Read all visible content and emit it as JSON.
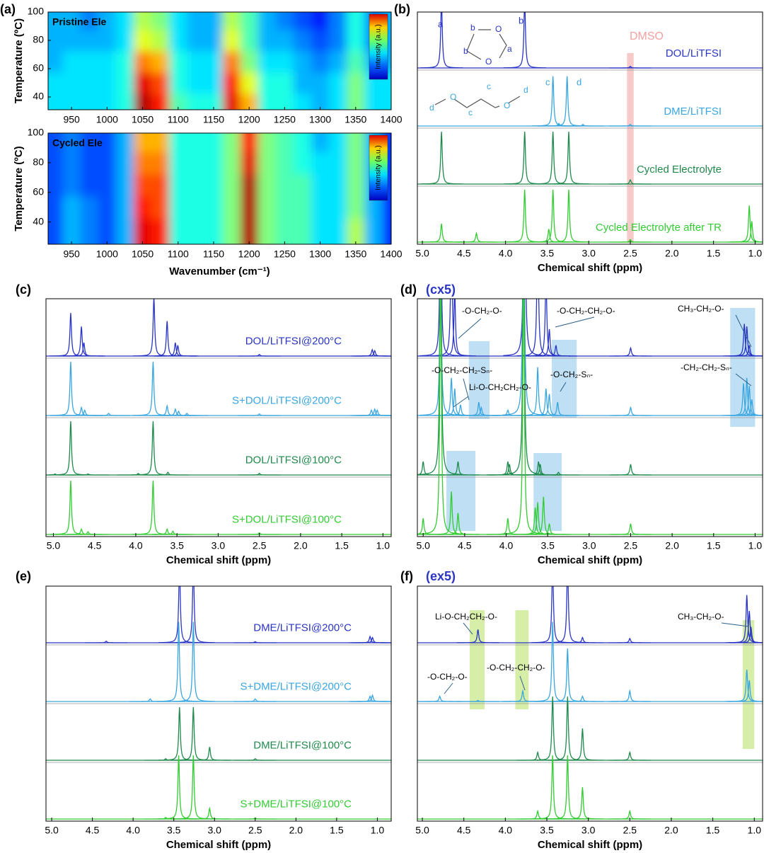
{
  "chart_data": [
    {
      "type": "heatmap",
      "panel_label": "(a)",
      "title": "Pristine Ele",
      "ylabel": "Temperature (ºC)",
      "colorbar_label": "Intensity (a.u.)",
      "xlim": [
        917,
        1400
      ],
      "ylim": [
        31,
        100
      ],
      "xticks": [
        950,
        1000,
        1050,
        1100,
        1150,
        1200,
        1250,
        1300,
        1350,
        1400
      ],
      "yticks": [
        40,
        60,
        80,
        100
      ],
      "x": [
        925,
        950,
        975,
        1000,
        1025,
        1050,
        1075,
        1100,
        1125,
        1150,
        1175,
        1200,
        1225,
        1250,
        1275,
        1300,
        1325,
        1350,
        1375,
        1400
      ],
      "y": [
        35,
        50,
        65,
        80,
        95
      ],
      "values": [
        [
          0.35,
          0.35,
          0.35,
          0.35,
          0.4,
          0.95,
          0.85,
          0.45,
          0.4,
          0.4,
          0.9,
          0.7,
          0.4,
          0.4,
          0.35,
          0.3,
          0.35,
          0.5,
          0.35,
          0.35
        ],
        [
          0.35,
          0.35,
          0.35,
          0.35,
          0.4,
          0.9,
          0.8,
          0.4,
          0.35,
          0.35,
          0.85,
          0.6,
          0.4,
          0.4,
          0.3,
          0.3,
          0.35,
          0.5,
          0.35,
          0.35
        ],
        [
          0.3,
          0.35,
          0.35,
          0.35,
          0.4,
          0.75,
          0.7,
          0.4,
          0.35,
          0.35,
          0.75,
          0.5,
          0.35,
          0.35,
          0.3,
          0.25,
          0.3,
          0.45,
          0.3,
          0.3
        ],
        [
          0.3,
          0.3,
          0.3,
          0.3,
          0.35,
          0.6,
          0.55,
          0.35,
          0.3,
          0.3,
          0.6,
          0.45,
          0.3,
          0.3,
          0.25,
          0.2,
          0.25,
          0.4,
          0.25,
          0.3
        ],
        [
          0.3,
          0.3,
          0.25,
          0.3,
          0.35,
          0.55,
          0.5,
          0.35,
          0.3,
          0.3,
          0.55,
          0.45,
          0.3,
          0.25,
          0.2,
          0.15,
          0.25,
          0.4,
          0.25,
          0.3
        ]
      ]
    },
    {
      "type": "heatmap",
      "title": "Cycled Ele",
      "ylabel": "Temperature (ºC)",
      "xlabel": "Wavenumber (cm⁻¹)",
      "colorbar_label": "Intensity (a.u.)",
      "xlim": [
        917,
        1400
      ],
      "ylim": [
        25,
        100
      ],
      "xticks": [
        950,
        1000,
        1050,
        1100,
        1150,
        1200,
        1250,
        1300,
        1350,
        1400
      ],
      "yticks": [
        40,
        60,
        80,
        100
      ],
      "x": [
        925,
        950,
        975,
        1000,
        1025,
        1050,
        1075,
        1100,
        1125,
        1150,
        1175,
        1200,
        1225,
        1250,
        1275,
        1300,
        1325,
        1350,
        1375,
        1400
      ],
      "y": [
        35,
        50,
        65,
        80,
        95
      ],
      "values": [
        [
          0.2,
          0.3,
          0.25,
          0.2,
          0.3,
          0.9,
          0.85,
          0.4,
          0.4,
          0.4,
          0.5,
          0.95,
          0.5,
          0.45,
          0.45,
          0.35,
          0.35,
          0.55,
          0.3,
          0.15
        ],
        [
          0.2,
          0.3,
          0.25,
          0.2,
          0.3,
          0.85,
          0.8,
          0.4,
          0.4,
          0.4,
          0.5,
          0.95,
          0.5,
          0.45,
          0.45,
          0.35,
          0.35,
          0.5,
          0.3,
          0.15
        ],
        [
          0.2,
          0.25,
          0.2,
          0.2,
          0.3,
          0.8,
          0.8,
          0.4,
          0.4,
          0.4,
          0.5,
          0.95,
          0.5,
          0.45,
          0.45,
          0.35,
          0.35,
          0.5,
          0.3,
          0.15
        ],
        [
          0.2,
          0.25,
          0.2,
          0.2,
          0.3,
          0.75,
          0.75,
          0.4,
          0.4,
          0.4,
          0.5,
          0.9,
          0.5,
          0.45,
          0.4,
          0.35,
          0.35,
          0.5,
          0.3,
          0.15
        ],
        [
          0.2,
          0.25,
          0.2,
          0.2,
          0.3,
          0.7,
          0.7,
          0.4,
          0.4,
          0.4,
          0.5,
          0.85,
          0.5,
          0.45,
          0.4,
          0.3,
          0.35,
          0.5,
          0.3,
          0.15
        ]
      ]
    },
    {
      "type": "spectrum",
      "panel_label": "(b)",
      "xlabel": "Chemical shift (ppm)",
      "xlim": [
        5.06,
        0.91
      ],
      "xticks": [
        {
          "value": 5,
          "label": "5.0"
        },
        4.5,
        {
          "value": 4,
          "label": "4.0"
        },
        3.5,
        {
          "value": 3,
          "label": "3.0"
        },
        2.5,
        {
          "value": 2,
          "label": "2.0"
        },
        1.5,
        {
          "value": 1,
          "label": "1.0"
        }
      ],
      "bands": [
        [
          2.54,
          2.46
        ]
      ],
      "band_color": "#f6b8b8",
      "annotations": [
        "DMSO",
        "a",
        "b",
        "b",
        "b",
        "a",
        "c",
        "d",
        "d",
        "c",
        "c",
        "d",
        "O",
        "O",
        "O",
        "O"
      ],
      "series": [
        {
          "name": "DOL/LiTFSI",
          "color": "#2a35c4",
          "x": [
            4.77,
            3.77,
            2.5
          ],
          "values": [
            1.3,
            1.3,
            0.03
          ]
        },
        {
          "name": "DME/LiTFSI",
          "color": "#3aa6e0",
          "x": [
            3.43,
            3.36,
            3.26,
            3.07,
            2.5
          ],
          "values": [
            0.95,
            0.05,
            0.95,
            0.03,
            0.03
          ]
        },
        {
          "name": "Cycled Electrolyte",
          "color": "#1f8a4c",
          "x": [
            4.77,
            3.77,
            3.43,
            3.24,
            2.5
          ],
          "values": [
            1.0,
            1.0,
            1.0,
            1.0,
            0.08
          ]
        },
        {
          "name": "Cycled Electrolyte after TR",
          "color": "#33cc33",
          "x": [
            4.77,
            4.35,
            3.77,
            3.48,
            3.43,
            3.24,
            2.5,
            1.07,
            1.04
          ],
          "values": [
            0.35,
            0.17,
            1.0,
            0.25,
            1.0,
            1.0,
            0.05,
            0.7,
            0.4
          ]
        }
      ]
    },
    {
      "type": "spectrum",
      "panel_label": "(c)",
      "xlabel": "Chemical shift (ppm)",
      "xlim": [
        5.09,
        0.9
      ],
      "xticks": [
        {
          "value": 5,
          "label": "5.0"
        },
        4.5,
        {
          "value": 4,
          "label": "4.0"
        },
        3.5,
        {
          "value": 3,
          "label": "3.0"
        },
        2.5,
        {
          "value": 2,
          "label": "2.0"
        },
        1.5,
        {
          "value": 1,
          "label": "1.0"
        }
      ],
      "series": [
        {
          "name": "DOL/LiTFSI@200°C",
          "color": "#2a35c4",
          "x": [
            4.79,
            4.66,
            4.63,
            3.78,
            3.62,
            3.52,
            3.49,
            2.5,
            1.13,
            1.1
          ],
          "values": [
            0.8,
            0.55,
            0.25,
            1.1,
            0.65,
            0.25,
            0.2,
            0.03,
            0.12,
            0.1
          ]
        },
        {
          "name": "S+DOL/LiTFSI@200°C",
          "color": "#3aa6e0",
          "x": [
            4.79,
            4.66,
            4.62,
            4.33,
            3.79,
            3.62,
            3.52,
            3.48,
            3.38,
            2.5,
            1.14,
            1.1,
            1.07
          ],
          "values": [
            1.0,
            0.15,
            0.1,
            0.04,
            1.0,
            0.18,
            0.12,
            0.08,
            0.04,
            0.03,
            0.1,
            0.12,
            0.1
          ]
        },
        {
          "name": "DOL/LiTFSI@100°C",
          "color": "#1f8a4c",
          "x": [
            4.98,
            4.79,
            4.58,
            3.97,
            3.79,
            3.61,
            2.5
          ],
          "values": [
            0.02,
            1.0,
            0.02,
            0.03,
            1.0,
            0.05,
            0.03
          ]
        },
        {
          "name": "S+DOL/LiTFSI@100°C",
          "color": "#33cc33",
          "x": [
            4.79,
            4.66,
            4.58,
            3.79,
            3.62,
            3.55,
            2.5
          ],
          "values": [
            1.0,
            0.1,
            0.05,
            1.0,
            0.1,
            0.06,
            0.03
          ]
        }
      ]
    },
    {
      "type": "spectrum",
      "panel_label": "(d)",
      "title": "(cx5)",
      "xlabel": "Chemical shift (ppm)",
      "xlim": [
        5.07,
        0.91
      ],
      "xticks": [
        {
          "value": 5,
          "label": "5.0"
        },
        4.5,
        {
          "value": 4,
          "label": "4.0"
        },
        3.5,
        {
          "value": 3,
          "label": "3.0"
        },
        2.5,
        {
          "value": 2,
          "label": "2.0"
        },
        1.5,
        {
          "value": 1,
          "label": "1.0"
        }
      ],
      "bands": [
        [
          4.45,
          4.2
        ],
        [
          3.45,
          3.15
        ],
        [
          1.3,
          1.0
        ],
        [
          4.72,
          4.37
        ],
        [
          3.67,
          3.33
        ]
      ],
      "band_color": "#a9d4f0",
      "annotations": [
        "-O-CH₂-O-",
        "-O-CH₂-CH₂-O-",
        "CH₃-CH₂-O-",
        "-O-CH₂-CH₂-Sₙ-",
        "Li-O-CH₂CH₂-O-",
        "-O-CH₂-Sₙ-",
        "-CH₂-CH₂-Sₙ-"
      ],
      "series": [
        {
          "color": "#2a35c4",
          "x": [
            4.79,
            4.66,
            4.62,
            3.78,
            3.62,
            3.52,
            3.48,
            3.4,
            2.5,
            1.13,
            1.1,
            1.07
          ],
          "values": [
            3,
            2.5,
            1.2,
            5,
            2.5,
            1.5,
            0.5,
            0.2,
            0.15,
            0.6,
            0.55,
            0.2
          ]
        },
        {
          "color": "#3aa6e0",
          "x": [
            4.79,
            4.66,
            4.62,
            4.55,
            4.33,
            4.3,
            3.98,
            3.79,
            3.62,
            3.52,
            3.48,
            3.38,
            2.5,
            1.14,
            1.1,
            1.07,
            1.04
          ],
          "values": [
            3,
            0.7,
            0.5,
            0.2,
            0.25,
            0.15,
            0.1,
            5,
            0.9,
            0.5,
            0.4,
            0.25,
            0.15,
            0.6,
            0.7,
            0.55,
            0.3
          ]
        },
        {
          "color": "#1f8a4c",
          "x": [
            5.0,
            4.79,
            4.58,
            3.98,
            3.96,
            3.79,
            3.61,
            3.59,
            3.37,
            2.5
          ],
          "values": [
            0.25,
            5,
            0.25,
            0.25,
            0.2,
            5,
            0.25,
            0.2,
            0.05,
            0.2
          ]
        },
        {
          "color": "#33cc33",
          "x": [
            5.0,
            4.79,
            4.66,
            4.58,
            3.98,
            3.79,
            3.65,
            3.62,
            3.55,
            3.48,
            2.5
          ],
          "values": [
            0.3,
            5,
            0.8,
            0.4,
            0.3,
            5,
            0.5,
            0.6,
            0.7,
            0.2,
            0.2
          ]
        }
      ]
    },
    {
      "type": "spectrum",
      "panel_label": "(e)",
      "xlabel": "Chemical shift (ppm)",
      "xlim": [
        5.07,
        0.83
      ],
      "xticks": [
        {
          "value": 5,
          "label": "5.0"
        },
        4.5,
        {
          "value": 4,
          "label": "4.0"
        },
        3.5,
        {
          "value": 3,
          "label": "3.0"
        },
        2.5,
        {
          "value": 2,
          "label": "2.0"
        },
        1.5,
        {
          "value": 1,
          "label": "1.0"
        }
      ],
      "series": [
        {
          "name": "DME/LiTFSI@200°C",
          "color": "#2a35c4",
          "x": [
            4.33,
            3.43,
            3.26,
            2.5,
            1.09,
            1.06
          ],
          "values": [
            0.03,
            1.5,
            1.5,
            0.02,
            0.12,
            0.1
          ]
        },
        {
          "name": "S+DME/LiTFSI@200°C",
          "color": "#3aa6e0",
          "x": [
            3.79,
            3.44,
            3.26,
            2.5,
            1.09,
            1.06
          ],
          "values": [
            0.05,
            1.5,
            1.5,
            0.05,
            0.1,
            0.12
          ]
        },
        {
          "name": "DME/LiTFSI@100°C",
          "color": "#1f8a4c",
          "x": [
            3.6,
            3.43,
            3.26,
            3.06,
            2.5
          ],
          "values": [
            0.03,
            1.0,
            1.0,
            0.25,
            0.03
          ]
        },
        {
          "name": "S+DME/LiTFSI@100°C",
          "color": "#33cc33",
          "x": [
            3.6,
            3.44,
            3.26,
            3.06,
            2.5
          ],
          "values": [
            0.03,
            1.2,
            1.2,
            0.2,
            0.02
          ]
        }
      ]
    },
    {
      "type": "spectrum",
      "panel_label": "(f)",
      "title": "(ex5)",
      "xlabel": "Chemical shift (ppm)",
      "xlim": [
        5.06,
        0.9
      ],
      "xticks": [
        {
          "value": 5,
          "label": "5.0"
        },
        4.5,
        {
          "value": 4,
          "label": "4.0"
        },
        3.5,
        {
          "value": 3,
          "label": "3.0"
        },
        2.5,
        {
          "value": 2,
          "label": "2.0"
        },
        1.5,
        {
          "value": 1,
          "label": "1.0"
        }
      ],
      "bands": [
        [
          4.43,
          4.25
        ],
        [
          3.88,
          3.72
        ],
        [
          1.14,
          1.0
        ]
      ],
      "band_color": "#c8e88a",
      "annotations": [
        "Li-O-CH₂CH₂-O-",
        "-O-CH₂-O-",
        "-O-CH₂-CH₂-O-",
        "CH₃-CH₂-O-"
      ],
      "series": [
        {
          "color": "#2a35c4",
          "x": [
            4.33,
            3.43,
            3.25,
            3.07,
            2.5,
            1.09,
            1.06,
            1.04
          ],
          "values": [
            0.25,
            1.5,
            1.5,
            0.1,
            0.08,
            0.9,
            0.6,
            0.3
          ]
        },
        {
          "color": "#3aa6e0",
          "x": [
            4.79,
            4.33,
            3.79,
            3.43,
            3.25,
            3.07,
            2.5,
            1.09,
            1.06
          ],
          "values": [
            0.1,
            0.02,
            0.2,
            1.5,
            1.0,
            0.1,
            0.2,
            0.6,
            0.4
          ]
        },
        {
          "color": "#1f8a4c",
          "x": [
            3.61,
            3.43,
            3.25,
            3.07,
            2.5
          ],
          "values": [
            0.15,
            1.2,
            1.2,
            0.6,
            0.15
          ]
        },
        {
          "color": "#33cc33",
          "x": [
            3.61,
            3.43,
            3.25,
            3.07,
            2.5
          ],
          "values": [
            0.15,
            1.2,
            1.2,
            0.6,
            0.15
          ]
        }
      ]
    }
  ]
}
